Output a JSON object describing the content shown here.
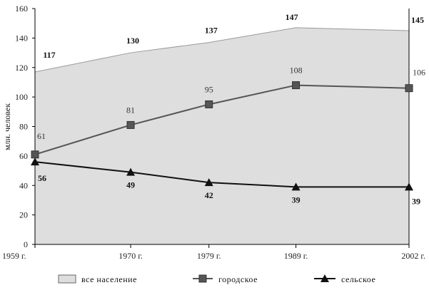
{
  "chart_data": {
    "type": "line",
    "x": [
      "1959 г.",
      "1970 г.",
      "1979 г.",
      "1989 г.",
      "2002 г."
    ],
    "x_years": [
      1959,
      1970,
      1979,
      1989,
      2002
    ],
    "ylabel": "млн. человек",
    "ylim": [
      0,
      160
    ],
    "yticks": [
      "0",
      "20",
      "40",
      "60",
      "80",
      "100",
      "120",
      "140",
      "160"
    ],
    "grid": false,
    "legend_position": "bottom",
    "series": [
      {
        "name": "все население",
        "kind": "area",
        "values": [
          117,
          130,
          137,
          147,
          145
        ],
        "labels": [
          "117",
          "130",
          "137",
          "147",
          "145"
        ],
        "color": "#dedede",
        "line_color": "#9a9a9a"
      },
      {
        "name": "городское",
        "kind": "line",
        "marker": "square",
        "values": [
          61,
          81,
          95,
          108,
          106
        ],
        "labels": [
          "61",
          "81",
          "95",
          "108",
          "106"
        ],
        "color": "#555555"
      },
      {
        "name": "сельское",
        "kind": "line",
        "marker": "triangle",
        "values": [
          56,
          49,
          42,
          39,
          39
        ],
        "labels": [
          "56",
          "49",
          "42",
          "39",
          "39"
        ],
        "color": "#111111"
      }
    ]
  }
}
